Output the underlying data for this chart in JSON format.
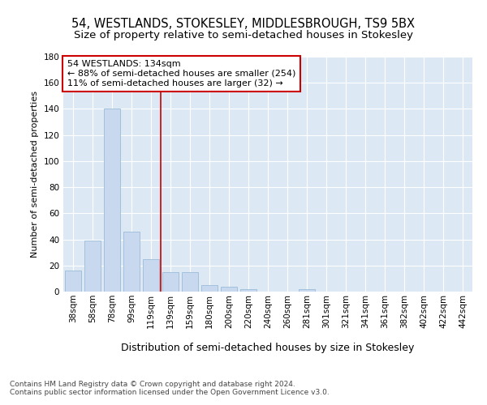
{
  "title": "54, WESTLANDS, STOKESLEY, MIDDLESBROUGH, TS9 5BX",
  "subtitle": "Size of property relative to semi-detached houses in Stokesley",
  "xlabel": "Distribution of semi-detached houses by size in Stokesley",
  "ylabel": "Number of semi-detached properties",
  "categories": [
    "38sqm",
    "58sqm",
    "78sqm",
    "99sqm",
    "119sqm",
    "139sqm",
    "159sqm",
    "180sqm",
    "200sqm",
    "220sqm",
    "240sqm",
    "260sqm",
    "281sqm",
    "301sqm",
    "321sqm",
    "341sqm",
    "361sqm",
    "382sqm",
    "402sqm",
    "422sqm",
    "442sqm"
  ],
  "values": [
    16,
    39,
    140,
    46,
    25,
    15,
    15,
    5,
    4,
    2,
    0,
    0,
    2,
    0,
    0,
    0,
    0,
    0,
    0,
    0,
    0
  ],
  "bar_color": "#c8d9ef",
  "bar_edge_color": "#9bbcd8",
  "vline_x_index": 5,
  "vline_color": "#cc0000",
  "annotation_text": "54 WESTLANDS: 134sqm\n← 88% of semi-detached houses are smaller (254)\n11% of semi-detached houses are larger (32) →",
  "annotation_box_facecolor": "#ffffff",
  "annotation_box_edgecolor": "#cc0000",
  "ylim": [
    0,
    180
  ],
  "yticks": [
    0,
    20,
    40,
    60,
    80,
    100,
    120,
    140,
    160,
    180
  ],
  "bg_color": "#dce9f5",
  "footer": "Contains HM Land Registry data © Crown copyright and database right 2024.\nContains public sector information licensed under the Open Government Licence v3.0.",
  "title_fontsize": 10.5,
  "subtitle_fontsize": 9.5,
  "xlabel_fontsize": 9,
  "ylabel_fontsize": 8,
  "tick_fontsize": 7.5,
  "annotation_fontsize": 8,
  "footer_fontsize": 6.5
}
